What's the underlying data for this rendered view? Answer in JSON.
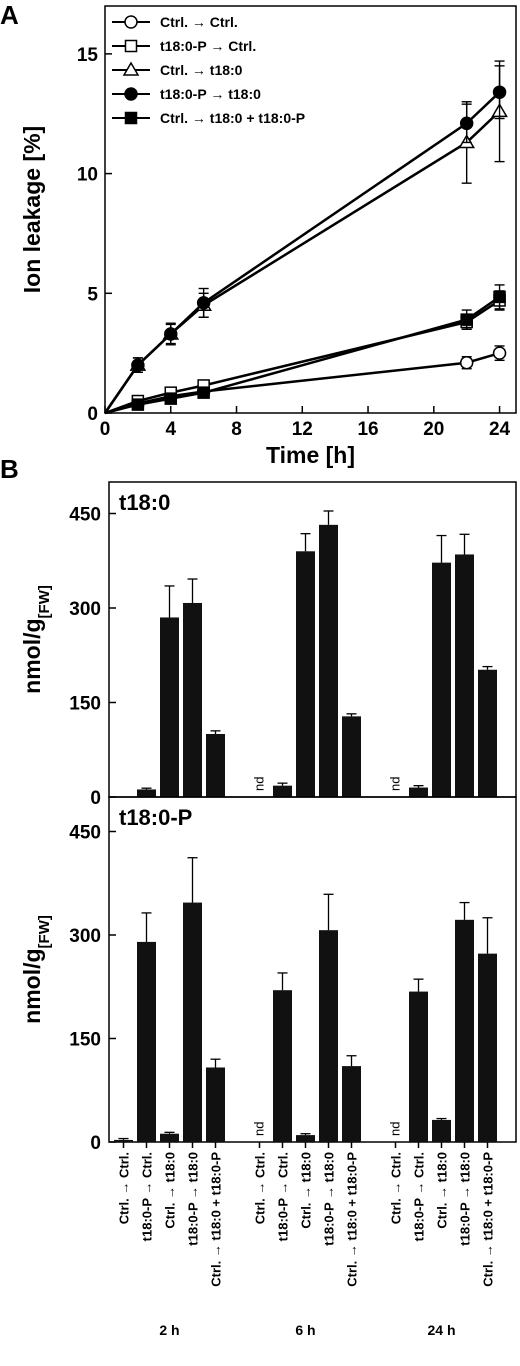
{
  "panels": {
    "A": {
      "letter": "A",
      "chart_data": {
        "type": "line",
        "xlabel": "Time [h]",
        "ylabel": "Ion leakage [%]",
        "xlim": [
          0,
          25
        ],
        "ylim": [
          0,
          17
        ],
        "xticks": [
          "0",
          "4",
          "8",
          "12",
          "16",
          "20",
          "24"
        ],
        "yticks": [
          "0",
          "5",
          "10",
          "15"
        ],
        "legend_position": "top-left",
        "x": [
          0,
          2,
          4,
          6,
          22,
          24
        ],
        "series": [
          {
            "name": "Ctrl. → Ctrl.",
            "marker": "circle-open",
            "values": [
              0,
              0.4,
              0.7,
              0.9,
              2.1,
              2.5
            ],
            "errors": [
              0,
              0.15,
              0.2,
              0.2,
              0.25,
              0.3
            ]
          },
          {
            "name": "t18:0-P → Ctrl.",
            "marker": "square-open",
            "values": [
              0,
              0.5,
              0.85,
              1.15,
              3.8,
              4.7
            ],
            "errors": [
              0,
              0.2,
              0.2,
              0.2,
              0.3,
              0.4
            ]
          },
          {
            "name": "Ctrl. → t18:0",
            "marker": "triangle-open",
            "values": [
              0,
              2.0,
              3.3,
              4.5,
              11.3,
              12.6
            ],
            "errors": [
              0,
              0.3,
              0.4,
              0.5,
              1.7,
              2.1
            ]
          },
          {
            "name": "t18:0-P → t18:0",
            "marker": "circle-filled",
            "values": [
              0,
              2.0,
              3.3,
              4.6,
              12.1,
              13.4
            ],
            "errors": [
              0,
              0.3,
              0.45,
              0.6,
              0.8,
              1.1
            ]
          },
          {
            "name": "Ctrl. → t18:0 + t18:0-P",
            "marker": "square-filled",
            "values": [
              0,
              0.35,
              0.6,
              0.85,
              3.9,
              4.85
            ],
            "errors": [
              0,
              0.15,
              0.2,
              0.2,
              0.4,
              0.5
            ]
          }
        ]
      }
    },
    "B": {
      "letter": "B",
      "chart_data": [
        {
          "type": "bar",
          "title": "t18:0",
          "ylabel": "nmol/g",
          "ylabel_subscript": "[FW]",
          "ylim": [
            0,
            500
          ],
          "yticks": [
            "0",
            "150",
            "300",
            "450"
          ],
          "groups": [
            "2 h",
            "6 h",
            "24 h"
          ],
          "categories": [
            "Ctrl. → Ctrl.",
            "t18:0-P → Ctrl.",
            "Ctrl. → t18:0",
            "t18:0-P → t18:0",
            "Ctrl. → t18:0 + t18:0-P"
          ],
          "values": [
            [
              0,
              12,
              285,
              308,
              100
            ],
            [
              null,
              18,
              390,
              432,
              128
            ],
            [
              null,
              15,
              372,
              385,
              202
            ]
          ],
          "errors": [
            [
              0,
              2,
              50,
              38,
              5
            ],
            [
              null,
              4,
              28,
              22,
              4
            ],
            [
              null,
              3,
              43,
              32,
              5
            ]
          ],
          "not_detected_label": "nd"
        },
        {
          "type": "bar",
          "title": "t18:0-P",
          "ylabel": "nmol/g",
          "ylabel_subscript": "[FW]",
          "ylim": [
            0,
            500
          ],
          "yticks": [
            "0",
            "150",
            "300",
            "450"
          ],
          "groups": [
            "2 h",
            "6 h",
            "24 h"
          ],
          "categories": [
            "Ctrl. → Ctrl.",
            "t18:0-P → Ctrl.",
            "Ctrl. → t18:0",
            "t18:0-P → t18:0",
            "Ctrl. → t18:0 + t18:0-P"
          ],
          "values": [
            [
              3,
              290,
              12,
              347,
              108
            ],
            [
              null,
              220,
              10,
              307,
              110
            ],
            [
              null,
              218,
              32,
              322,
              273
            ]
          ],
          "errors": [
            [
              2,
              42,
              2,
              65,
              12
            ],
            [
              null,
              25,
              2,
              52,
              15
            ],
            [
              null,
              18,
              2,
              25,
              52
            ]
          ],
          "not_detected_label": "nd"
        }
      ]
    }
  }
}
